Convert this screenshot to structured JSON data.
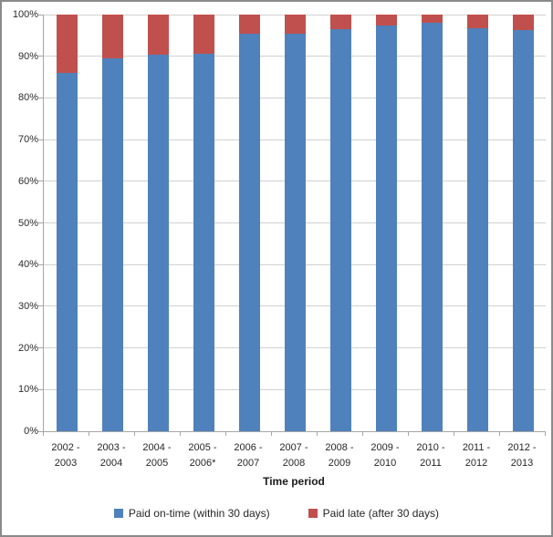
{
  "chart_data": {
    "type": "bar",
    "subtype": "stacked-100-percent-column",
    "title": "",
    "xlabel": "Time period",
    "ylabel": "",
    "categories": [
      "2002 - 2003",
      "2003 - 2004",
      "2004 - 2005",
      "2005 - 2006*",
      "2006 - 2007",
      "2007 - 2008",
      "2008 - 2009",
      "2009 - 2010",
      "2010 - 2011",
      "2011 - 2012",
      "2012 - 2013"
    ],
    "series": [
      {
        "name": "Paid on-time (within 30 days)",
        "color": "#4f81bd",
        "values": [
          86.0,
          89.4,
          90.4,
          90.5,
          95.3,
          95.5,
          96.4,
          97.3,
          98.0,
          96.8,
          96.2
        ]
      },
      {
        "name": "Paid late (after 30 days)",
        "color": "#c0504d",
        "values": [
          14.0,
          10.6,
          9.6,
          9.5,
          4.7,
          4.5,
          3.6,
          2.7,
          2.0,
          3.2,
          3.8
        ]
      }
    ],
    "y_ticks": [
      "0%",
      "10%",
      "20%",
      "30%",
      "40%",
      "50%",
      "60%",
      "70%",
      "80%",
      "90%",
      "100%"
    ],
    "ylim": [
      0,
      100
    ],
    "grid": true,
    "legend_position": "bottom",
    "colors": {
      "gridline": "#d1d1d1",
      "axis_line": "#a6a6a6",
      "chart_border": "#8a8a8a",
      "text": "#262626"
    }
  }
}
